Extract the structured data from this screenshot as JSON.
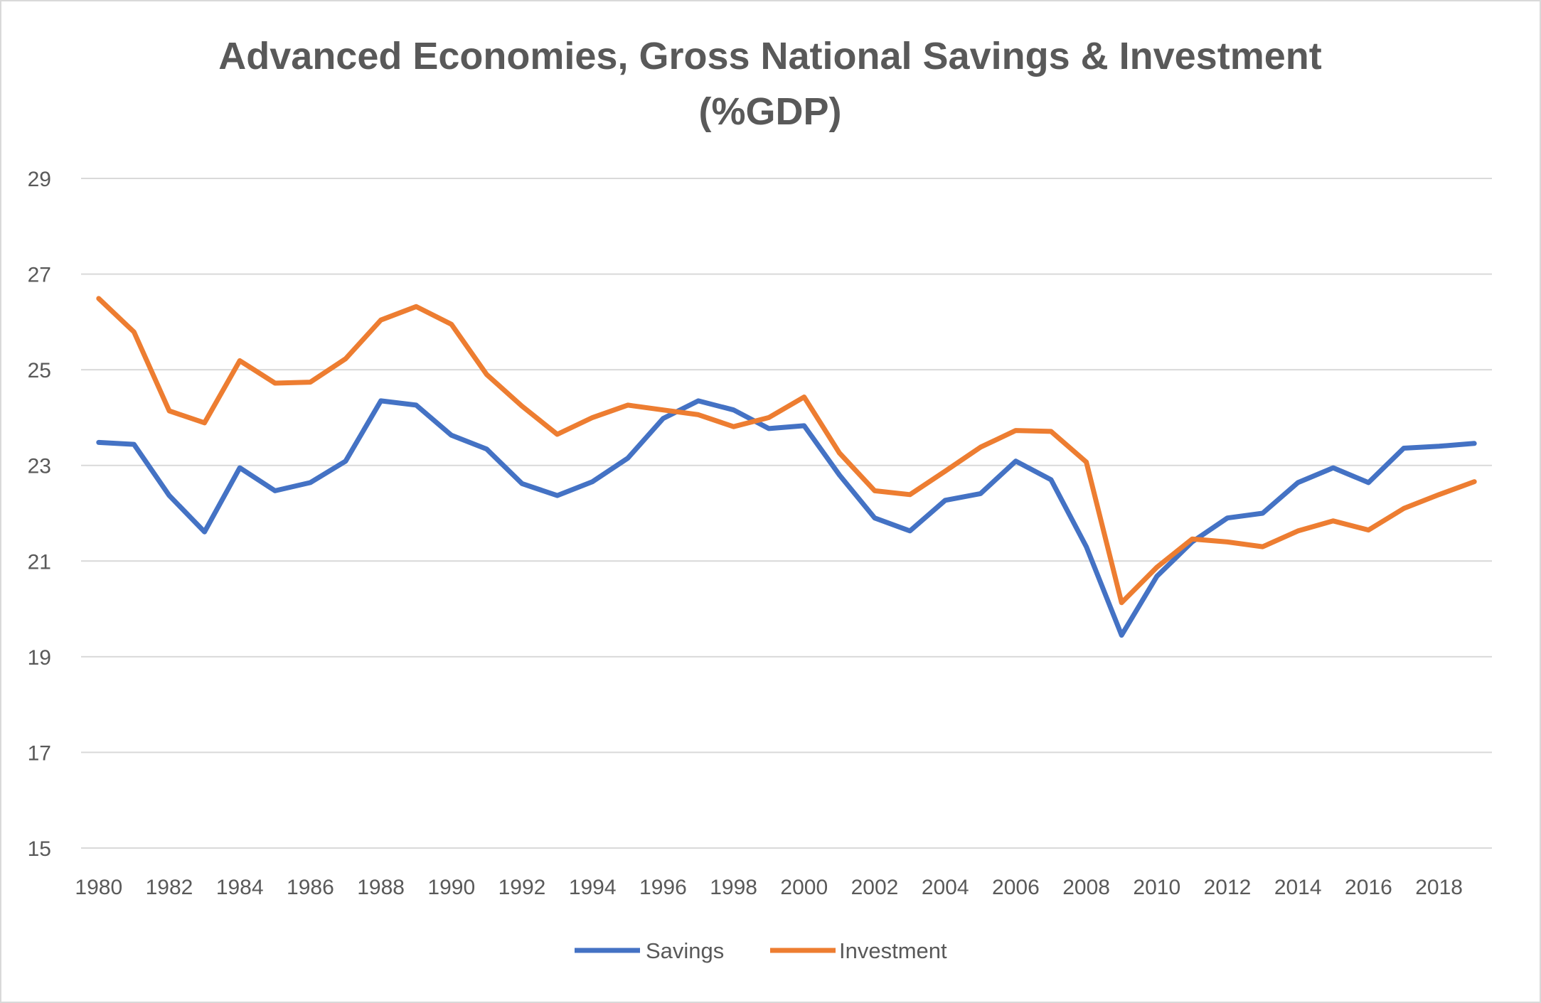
{
  "chart_data": {
    "type": "line",
    "title": "Advanced Economies, Gross National Savings & Investment",
    "subtitle": "(%GDP)",
    "xlabel": "",
    "ylabel": "",
    "ylim": [
      15,
      29
    ],
    "yticks": [
      "15",
      "17",
      "19",
      "21",
      "23",
      "25",
      "27",
      "29"
    ],
    "x": [
      1980,
      1981,
      1982,
      1983,
      1984,
      1985,
      1986,
      1987,
      1988,
      1989,
      1990,
      1991,
      1992,
      1993,
      1994,
      1995,
      1996,
      1997,
      1998,
      1999,
      2000,
      2001,
      2002,
      2003,
      2004,
      2005,
      2006,
      2007,
      2008,
      2009,
      2010,
      2011,
      2012,
      2013,
      2014,
      2015,
      2016,
      2017,
      2018,
      2019
    ],
    "xtick_labels": [
      "1980",
      "1982",
      "1984",
      "1986",
      "1988",
      "1990",
      "1992",
      "1994",
      "1996",
      "1998",
      "2000",
      "2002",
      "2004",
      "2006",
      "2008",
      "2010",
      "2012",
      "2014",
      "2016",
      "2018"
    ],
    "grid": true,
    "legend_position": "bottom",
    "series": [
      {
        "name": "Savings",
        "color": "#4472C4",
        "values": [
          23.48,
          23.44,
          22.37,
          21.61,
          22.95,
          22.47,
          22.64,
          23.09,
          24.35,
          24.26,
          23.63,
          23.34,
          22.62,
          22.37,
          22.66,
          23.15,
          23.98,
          24.35,
          24.16,
          23.77,
          23.83,
          22.8,
          21.9,
          21.63,
          22.27,
          22.41,
          23.09,
          22.7,
          21.3,
          19.45,
          20.68,
          21.4,
          21.9,
          22.0,
          22.64,
          22.95,
          22.64,
          23.36,
          23.4,
          23.46
        ]
      },
      {
        "name": "Investment",
        "color": "#ED7D31",
        "values": [
          26.49,
          25.79,
          24.14,
          23.89,
          25.19,
          24.72,
          24.74,
          25.23,
          26.04,
          26.32,
          25.95,
          24.9,
          24.24,
          23.65,
          24.0,
          24.26,
          24.16,
          24.06,
          23.81,
          24.0,
          24.43,
          23.26,
          22.47,
          22.39,
          22.88,
          23.38,
          23.73,
          23.71,
          23.07,
          20.13,
          20.87,
          21.46,
          21.4,
          21.3,
          21.63,
          21.84,
          21.65,
          22.1,
          22.39,
          22.66
        ]
      }
    ]
  }
}
